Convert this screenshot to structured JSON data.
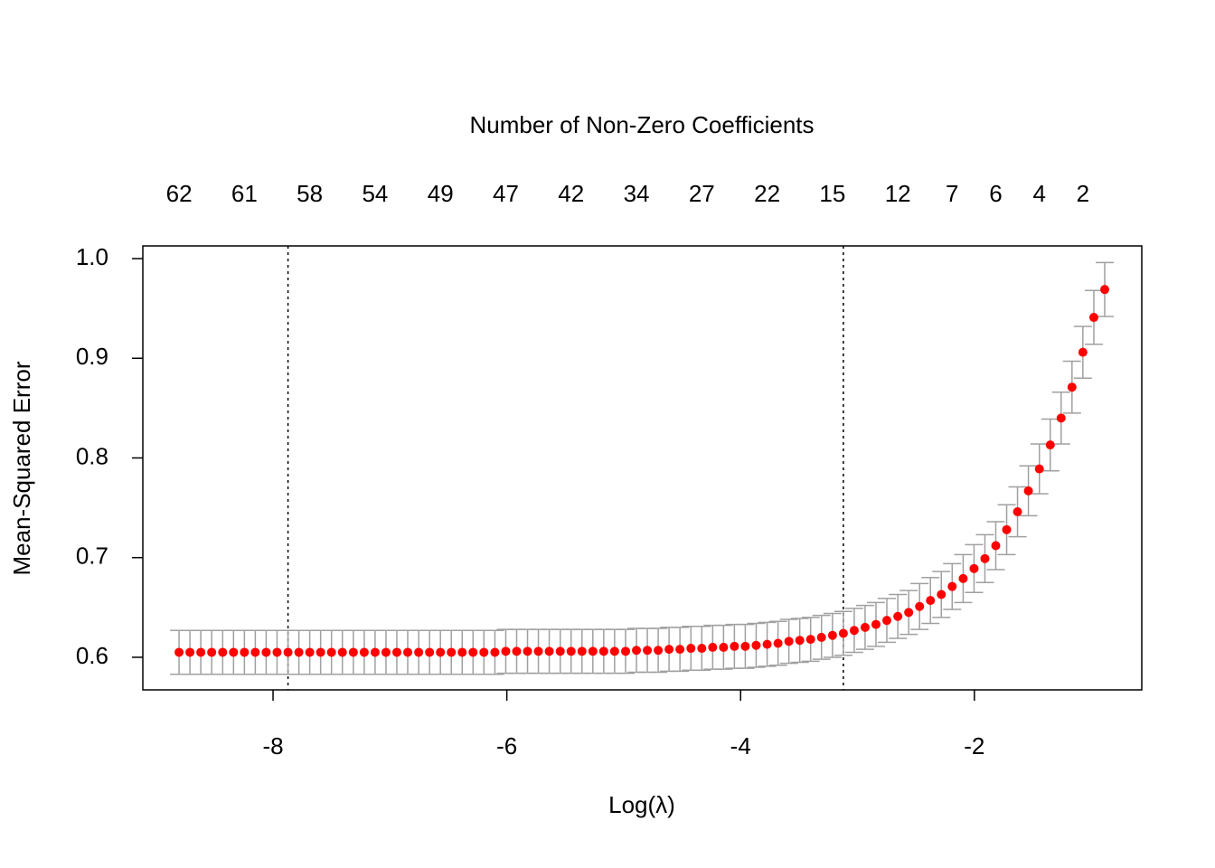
{
  "chart_data": {
    "type": "errorbar-scatter",
    "title": "Number of Non-Zero Coefficients",
    "x_label": "Log(λ)",
    "y_label": "Mean-Squared Error",
    "xlim": [
      -9.114,
      -0.568
    ],
    "ylim": [
      0.5673,
      1.0127
    ],
    "xticks": [
      -8,
      -6,
      -4,
      -2
    ],
    "yticks": [
      0.6,
      0.7,
      0.8,
      0.9,
      {
        "value": 1,
        "label": "1.0"
      }
    ],
    "top_ticks": [
      {
        "value": -8.804,
        "label": "62"
      },
      {
        "value": -8.245,
        "label": "61"
      },
      {
        "value": -7.686,
        "label": "58"
      },
      {
        "value": -7.127,
        "label": "54"
      },
      {
        "value": -6.568,
        "label": "49"
      },
      {
        "value": -6.009,
        "label": "47"
      },
      {
        "value": -5.45,
        "label": "42"
      },
      {
        "value": -4.891,
        "label": "34"
      },
      {
        "value": -4.332,
        "label": "27"
      },
      {
        "value": -3.773,
        "label": "22"
      },
      {
        "value": -3.214,
        "label": "15"
      },
      {
        "value": -2.655,
        "label": "12"
      },
      {
        "value": -2.19,
        "label": "7"
      },
      {
        "value": -1.817,
        "label": "6"
      },
      {
        "value": -1.444,
        "label": "4"
      },
      {
        "value": -1.072,
        "label": "2"
      }
    ],
    "vlines": [
      -7.872,
      -3.121
    ],
    "color": "#ff0000",
    "error_color": "#a0a0a0",
    "x": [
      -8.804,
      -8.711,
      -8.618,
      -8.525,
      -8.431,
      -8.338,
      -8.245,
      -8.152,
      -8.059,
      -7.966,
      -7.872,
      -7.779,
      -7.686,
      -7.593,
      -7.5,
      -7.407,
      -7.313,
      -7.22,
      -7.127,
      -7.034,
      -6.941,
      -6.848,
      -6.754,
      -6.661,
      -6.568,
      -6.475,
      -6.382,
      -6.289,
      -6.196,
      -6.102,
      -6.009,
      -5.916,
      -5.823,
      -5.73,
      -5.637,
      -5.543,
      -5.45,
      -5.357,
      -5.264,
      -5.171,
      -5.078,
      -4.984,
      -4.891,
      -4.798,
      -4.705,
      -4.612,
      -4.519,
      -4.425,
      -4.332,
      -4.239,
      -4.146,
      -4.053,
      -3.96,
      -3.867,
      -3.773,
      -3.68,
      -3.587,
      -3.494,
      -3.401,
      -3.308,
      -3.214,
      -3.121,
      -3.028,
      -2.935,
      -2.842,
      -2.749,
      -2.655,
      -2.562,
      -2.469,
      -2.376,
      -2.283,
      -2.19,
      -2.096,
      -2.003,
      -1.91,
      -1.817,
      -1.724,
      -1.631,
      -1.538,
      -1.444,
      -1.351,
      -1.258,
      -1.165,
      -1.072,
      -0.978,
      -0.885
    ],
    "values": [
      0.605,
      0.605,
      0.605,
      0.605,
      0.605,
      0.605,
      0.605,
      0.605,
      0.605,
      0.605,
      0.605,
      0.605,
      0.605,
      0.605,
      0.605,
      0.605,
      0.605,
      0.605,
      0.605,
      0.605,
      0.605,
      0.605,
      0.605,
      0.605,
      0.605,
      0.605,
      0.605,
      0.605,
      0.605,
      0.605,
      0.606,
      0.606,
      0.606,
      0.606,
      0.606,
      0.606,
      0.606,
      0.606,
      0.606,
      0.606,
      0.606,
      0.606,
      0.607,
      0.607,
      0.607,
      0.608,
      0.608,
      0.609,
      0.609,
      0.61,
      0.61,
      0.611,
      0.611,
      0.612,
      0.613,
      0.614,
      0.616,
      0.617,
      0.618,
      0.62,
      0.622,
      0.624,
      0.627,
      0.63,
      0.633,
      0.637,
      0.641,
      0.645,
      0.651,
      0.657,
      0.663,
      0.671,
      0.679,
      0.689,
      0.699,
      0.712,
      0.728,
      0.746,
      0.767,
      0.789,
      0.813,
      0.84,
      0.871,
      0.906,
      0.941,
      0.969
    ],
    "errors": [
      0.022,
      0.022,
      0.022,
      0.022,
      0.022,
      0.022,
      0.022,
      0.022,
      0.022,
      0.022,
      0.022,
      0.022,
      0.022,
      0.022,
      0.022,
      0.022,
      0.022,
      0.022,
      0.022,
      0.022,
      0.022,
      0.022,
      0.022,
      0.022,
      0.022,
      0.022,
      0.022,
      0.022,
      0.022,
      0.022,
      0.022,
      0.022,
      0.022,
      0.022,
      0.022,
      0.022,
      0.022,
      0.022,
      0.022,
      0.022,
      0.022,
      0.022,
      0.022,
      0.022,
      0.022,
      0.022,
      0.022,
      0.022,
      0.022,
      0.022,
      0.022,
      0.022,
      0.022,
      0.022,
      0.022,
      0.022,
      0.022,
      0.022,
      0.022,
      0.022,
      0.022,
      0.022,
      0.022,
      0.022,
      0.022,
      0.022,
      0.022,
      0.022,
      0.023,
      0.023,
      0.023,
      0.023,
      0.024,
      0.024,
      0.024,
      0.024,
      0.025,
      0.025,
      0.025,
      0.025,
      0.026,
      0.026,
      0.026,
      0.026,
      0.027,
      0.027
    ]
  }
}
